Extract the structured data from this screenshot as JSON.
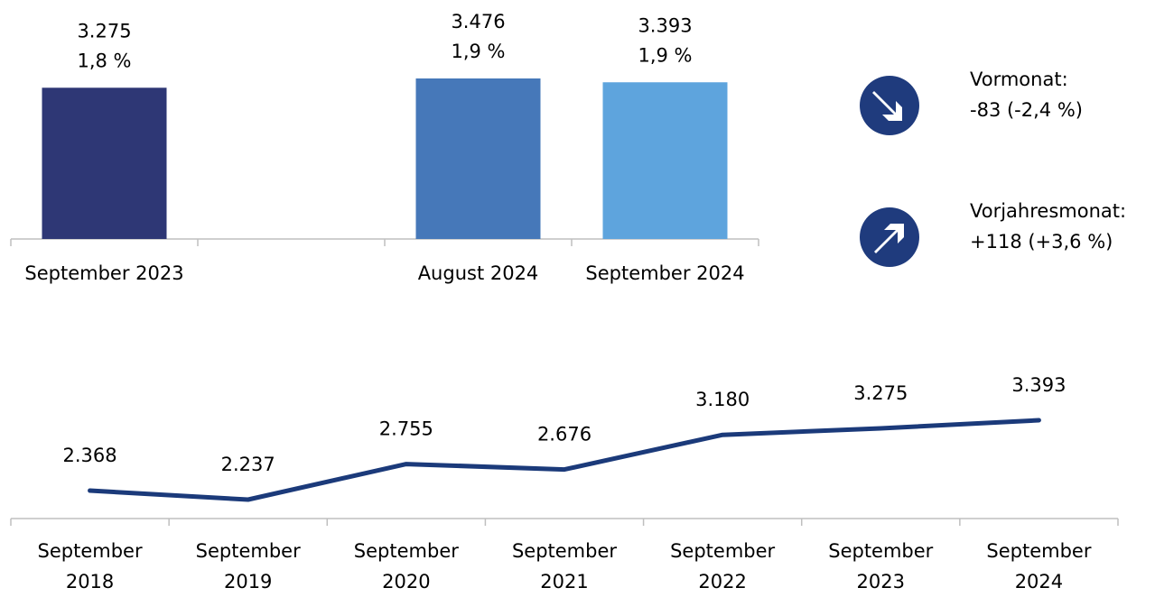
{
  "chart_data": [
    {
      "type": "bar",
      "categories": [
        "September 2023",
        null,
        "August 2024",
        "September 2024"
      ],
      "values": [
        3275,
        null,
        3476,
        3393
      ],
      "value_labels": [
        "3.275",
        null,
        "3.476",
        "3.393"
      ],
      "share_labels": [
        "1,8 %",
        null,
        "1,9 %",
        "1,9 %"
      ],
      "colors": [
        "#2e3775",
        null,
        "#4678b9",
        "#5ea4dd"
      ]
    },
    {
      "type": "line",
      "categories": [
        "September 2018",
        "September 2019",
        "September 2020",
        "September 2021",
        "September 2022",
        "September 2023",
        "September 2024"
      ],
      "values": [
        2368,
        2237,
        2755,
        2676,
        3180,
        3275,
        3393
      ],
      "value_labels": [
        "2.368",
        "2.237",
        "2.755",
        "2.676",
        "3.180",
        "3.275",
        "3.393"
      ],
      "color": "#1b3a7a"
    }
  ],
  "indicators": [
    {
      "label": "Vormonat:",
      "change": "-83 (-2,4 %)",
      "direction": "down"
    },
    {
      "label": "Vorjahresmonat:",
      "change": "+118 (+3,6 %)",
      "direction": "up"
    }
  ]
}
